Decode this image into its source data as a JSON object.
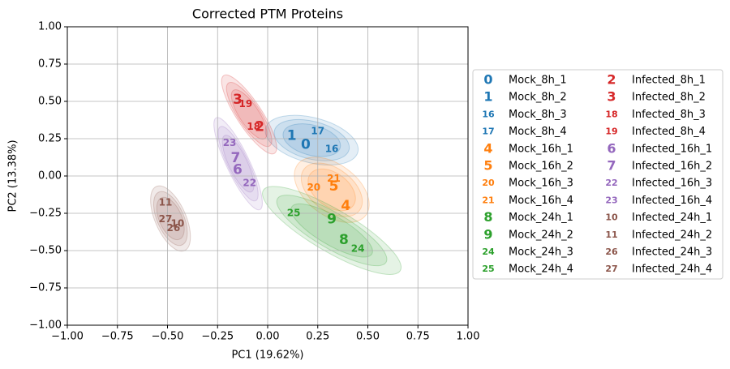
{
  "chart_data": {
    "type": "scatter",
    "title": "Corrected PTM Proteins",
    "x_label": "PC1 (19.62%)",
    "y_label": "PC2 (13.38%)",
    "xlim": [
      -1,
      1
    ],
    "ylim": [
      -1,
      1
    ],
    "xticks": [
      {
        "value": -1,
        "label": "−1.00"
      },
      {
        "value": -0.75,
        "label": "−0.75"
      },
      {
        "value": -0.5,
        "label": "−0.50"
      },
      {
        "value": -0.25,
        "label": "−0.25"
      },
      {
        "value": 0,
        "label": "0.00"
      },
      {
        "value": 0.25,
        "label": "0.25"
      },
      {
        "value": 0.5,
        "label": "0.50"
      },
      {
        "value": 0.75,
        "label": "0.75"
      },
      {
        "value": 1,
        "label": "1.00"
      }
    ],
    "yticks": [
      {
        "value": -1,
        "label": "−1.00"
      },
      {
        "value": -0.75,
        "label": "−0.75"
      },
      {
        "value": -0.5,
        "label": "−0.50"
      },
      {
        "value": -0.25,
        "label": "−0.25"
      },
      {
        "value": 0,
        "label": "0.00"
      },
      {
        "value": 0.25,
        "label": "0.25"
      },
      {
        "value": 0.5,
        "label": "0.50"
      },
      {
        "value": 0.75,
        "label": "0.75"
      },
      {
        "value": 1,
        "label": "1.00"
      }
    ],
    "grid": true,
    "legend": "outside right",
    "legend_columns": 2,
    "series": [
      {
        "name": "Mock_8h_1",
        "marker": "0",
        "color": "#1f77b4",
        "x": [
          0.19
        ],
        "values": [
          0.21
        ]
      },
      {
        "name": "Mock_8h_2",
        "marker": "1",
        "color": "#1f77b4",
        "x": [
          0.12
        ],
        "values": [
          0.27
        ]
      },
      {
        "name": "Mock_8h_3",
        "marker": "16",
        "color": "#1f77b4",
        "x": [
          0.32
        ],
        "values": [
          0.18
        ]
      },
      {
        "name": "Mock_8h_4",
        "marker": "17",
        "color": "#1f77b4",
        "x": [
          0.25
        ],
        "values": [
          0.3
        ]
      },
      {
        "name": "Mock_16h_1",
        "marker": "4",
        "color": "#ff7f0e",
        "x": [
          0.39
        ],
        "values": [
          -0.2
        ]
      },
      {
        "name": "Mock_16h_2",
        "marker": "5",
        "color": "#ff7f0e",
        "x": [
          0.33
        ],
        "values": [
          -0.07
        ]
      },
      {
        "name": "Mock_16h_3",
        "marker": "20",
        "color": "#ff7f0e",
        "x": [
          0.23
        ],
        "values": [
          -0.08
        ]
      },
      {
        "name": "Mock_16h_4",
        "marker": "21",
        "color": "#ff7f0e",
        "x": [
          0.33
        ],
        "values": [
          -0.02
        ]
      },
      {
        "name": "Mock_24h_1",
        "marker": "8",
        "color": "#2ca02c",
        "x": [
          0.38
        ],
        "values": [
          -0.43
        ]
      },
      {
        "name": "Mock_24h_2",
        "marker": "9",
        "color": "#2ca02c",
        "x": [
          0.32
        ],
        "values": [
          -0.29
        ]
      },
      {
        "name": "Mock_24h_3",
        "marker": "24",
        "color": "#2ca02c",
        "x": [
          0.45
        ],
        "values": [
          -0.49
        ]
      },
      {
        "name": "Mock_24h_4",
        "marker": "25",
        "color": "#2ca02c",
        "x": [
          0.13
        ],
        "values": [
          -0.25
        ]
      },
      {
        "name": "Infected_8h_1",
        "marker": "2",
        "color": "#d62728",
        "x": [
          -0.04
        ],
        "values": [
          0.33
        ]
      },
      {
        "name": "Infected_8h_2",
        "marker": "3",
        "color": "#d62728",
        "x": [
          -0.15
        ],
        "values": [
          0.51
        ]
      },
      {
        "name": "Infected_8h_3",
        "marker": "18",
        "color": "#d62728",
        "x": [
          -0.07
        ],
        "values": [
          0.33
        ]
      },
      {
        "name": "Infected_8h_4",
        "marker": "19",
        "color": "#d62728",
        "x": [
          -0.11
        ],
        "values": [
          0.48
        ]
      },
      {
        "name": "Infected_16h_1",
        "marker": "6",
        "color": "#9467bd",
        "x": [
          -0.15
        ],
        "values": [
          0.04
        ]
      },
      {
        "name": "Infected_16h_2",
        "marker": "7",
        "color": "#9467bd",
        "x": [
          -0.16
        ],
        "values": [
          0.12
        ]
      },
      {
        "name": "Infected_16h_3",
        "marker": "22",
        "color": "#9467bd",
        "x": [
          -0.09
        ],
        "values": [
          -0.05
        ]
      },
      {
        "name": "Infected_16h_4",
        "marker": "23",
        "color": "#9467bd",
        "x": [
          -0.19
        ],
        "values": [
          0.22
        ]
      },
      {
        "name": "Infected_24h_1",
        "marker": "10",
        "color": "#8c564b",
        "x": [
          -0.45
        ],
        "values": [
          -0.32
        ]
      },
      {
        "name": "Infected_24h_2",
        "marker": "11",
        "color": "#8c564b",
        "x": [
          -0.51
        ],
        "values": [
          -0.18
        ]
      },
      {
        "name": "Infected_24h_3",
        "marker": "26",
        "color": "#8c564b",
        "x": [
          -0.47
        ],
        "values": [
          -0.35
        ]
      },
      {
        "name": "Infected_24h_4",
        "marker": "27",
        "color": "#8c564b",
        "x": [
          -0.51
        ],
        "values": [
          -0.29
        ]
      }
    ]
  }
}
